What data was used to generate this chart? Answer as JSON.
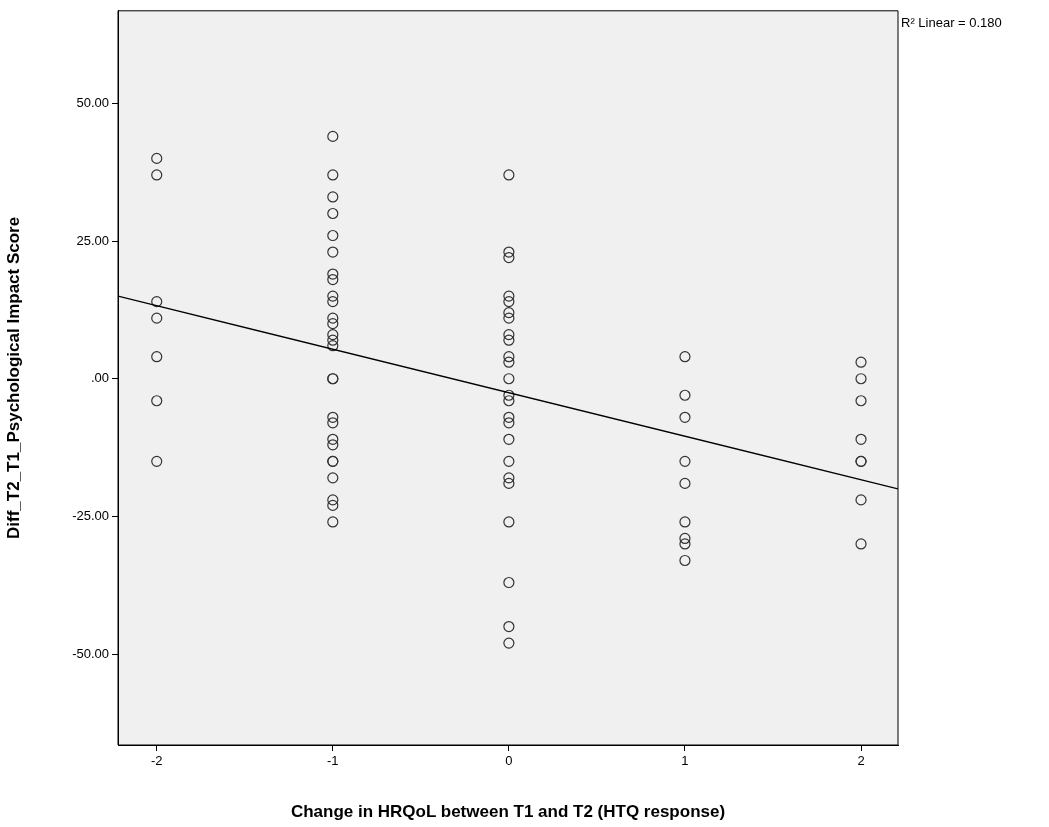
{
  "chart_data": {
    "type": "scatter",
    "xlabel": "Change in HRQoL between T1 and T2 (HTQ response)",
    "ylabel": "Diff_T2_T1_Psychological Impact Score",
    "annotations": [
      "R² Linear = 0.180"
    ],
    "xlim": [
      -2.22,
      2.21
    ],
    "xticks": [
      -2,
      -1,
      0,
      1,
      2
    ],
    "ylim": [
      -66.5,
      66.8
    ],
    "yticks": [
      {
        "value": -50,
        "label": "-50.00"
      },
      {
        "value": -25,
        "label": "-25.00"
      },
      {
        "value": 0,
        "label": ".00"
      },
      {
        "value": 25,
        "label": "25.00"
      },
      {
        "value": 50,
        "label": "50.00"
      }
    ],
    "grid": false,
    "legend": false,
    "series": [
      {
        "marker": "circle",
        "color": "#333333",
        "x": [
          -2,
          -2,
          -2,
          -2,
          -2,
          -2,
          -2,
          -1,
          -1,
          -1,
          -1,
          -1,
          -1,
          -1,
          -1,
          -1,
          -1,
          -1,
          -1,
          -1,
          -1,
          -1,
          -1,
          -1,
          -1,
          -1,
          -1,
          -1,
          -1,
          -1,
          -1,
          -1,
          -1,
          -1,
          0,
          0,
          0,
          0,
          0,
          0,
          0,
          0,
          0,
          0,
          0,
          0,
          0,
          0,
          0,
          0,
          0,
          0,
          0,
          0,
          0,
          0,
          0,
          0,
          1,
          1,
          1,
          1,
          1,
          1,
          1,
          1,
          1,
          2,
          2,
          2,
          2,
          2,
          2,
          2,
          2
        ],
        "values": [
          40,
          37,
          14,
          11,
          4,
          -4,
          -15,
          44,
          37,
          33,
          30,
          26,
          23,
          19,
          18,
          15,
          14,
          11,
          10,
          8,
          7,
          6,
          0,
          0,
          -7,
          -8,
          -11,
          -12,
          -15,
          -15,
          -18,
          -22,
          -23,
          -26,
          37,
          23,
          22,
          15,
          14,
          12,
          11,
          8,
          7,
          4,
          3,
          0,
          -3,
          -4,
          -7,
          -8,
          -11,
          -15,
          -18,
          -19,
          -26,
          -37,
          -45,
          -48,
          4,
          -3,
          -7,
          -15,
          -19,
          -26,
          -29,
          -30,
          -33,
          3,
          0,
          -4,
          -11,
          -15,
          -15,
          -22,
          -30
        ]
      },
      {
        "type": "line",
        "marker": "none",
        "color": "#000000",
        "line_style": "solid",
        "x": [
          -2.22,
          2.21
        ],
        "values": [
          15,
          -20
        ]
      }
    ]
  }
}
